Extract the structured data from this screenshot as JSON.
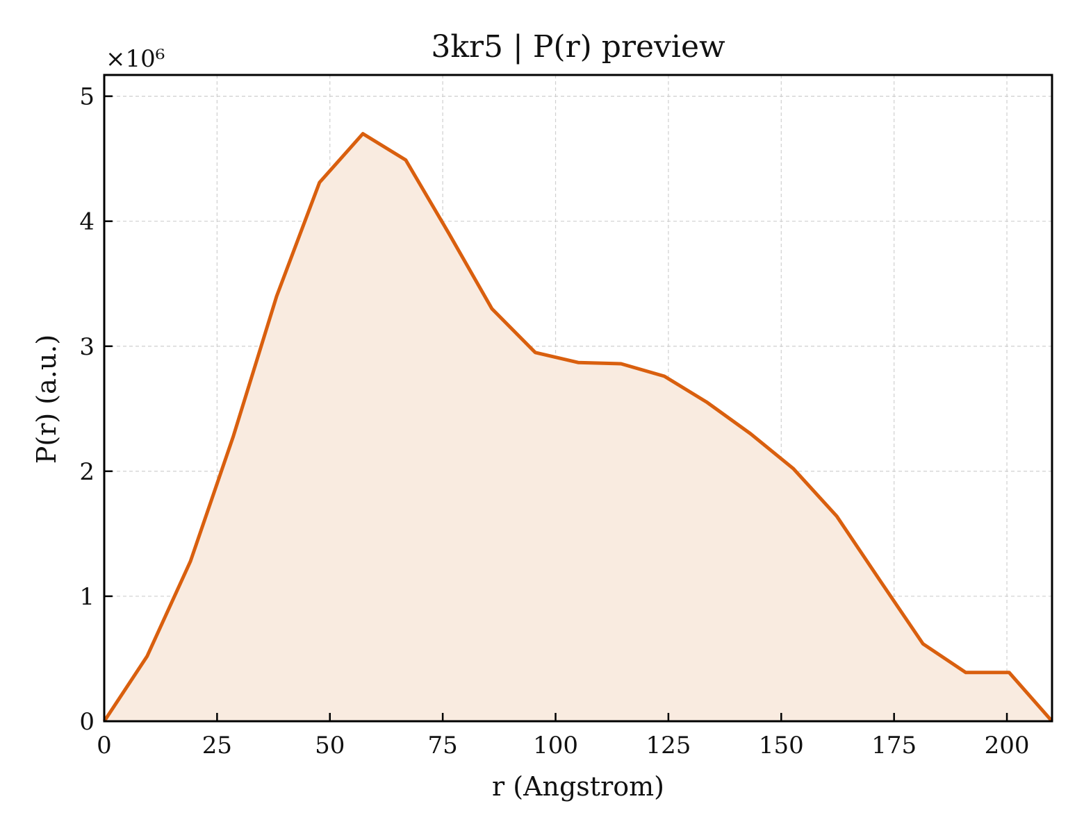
{
  "chart_data": {
    "type": "area",
    "title": "3kr5 | P(r) preview",
    "xlabel": "r (Angstrom)",
    "ylabel": "P(r) (a.u.)",
    "y_multiplier_label": "×10⁶",
    "xlim": [
      0,
      210
    ],
    "ylim": [
      0,
      5.17
    ],
    "xticks": [
      0,
      25,
      50,
      75,
      100,
      125,
      150,
      175,
      200
    ],
    "xtick_labels": [
      "0",
      "25",
      "50",
      "75",
      "100",
      "125",
      "150",
      "175",
      "200"
    ],
    "yticks": [
      0,
      1,
      2,
      3,
      4,
      5
    ],
    "ytick_labels": [
      "0",
      "1",
      "2",
      "3",
      "4",
      "5"
    ],
    "grid": true,
    "series": [
      {
        "line_color": "#d95f0e",
        "fill_color": "#f9ebe0",
        "x": [
          0,
          9.5,
          19.1,
          28.6,
          38.2,
          47.7,
          57.3,
          66.8,
          76.4,
          85.9,
          95.5,
          105.0,
          114.5,
          124.1,
          133.6,
          143.2,
          152.7,
          162.3,
          171.8,
          181.4,
          190.9,
          200.5,
          210.0
        ],
        "y": [
          0,
          0.52,
          1.28,
          2.28,
          3.4,
          4.31,
          4.7,
          4.49,
          3.9,
          3.3,
          2.95,
          2.87,
          2.86,
          2.76,
          2.55,
          2.3,
          2.02,
          1.64,
          1.13,
          0.62,
          0.39,
          0.39,
          0
        ]
      }
    ]
  }
}
